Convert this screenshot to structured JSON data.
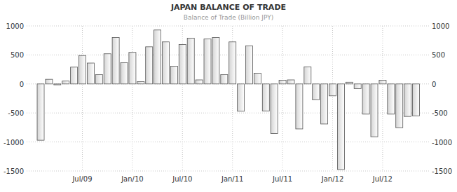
{
  "chart_data": {
    "type": "bar",
    "title": "JAPAN BALANCE OF TRADE",
    "subtitle": "Balance of Trade (Billion JPY)",
    "categories": [
      null,
      null,
      null,
      null,
      null,
      "Jul/09",
      null,
      null,
      null,
      null,
      null,
      "Jan/10",
      null,
      null,
      null,
      null,
      null,
      "Jul/10",
      null,
      null,
      null,
      null,
      null,
      "Jan/11",
      null,
      null,
      null,
      null,
      null,
      "Jul/11",
      null,
      null,
      null,
      null,
      null,
      "Jan/12",
      null,
      null,
      null,
      null,
      null,
      "Jul/12",
      null,
      null,
      null,
      null
    ],
    "values": [
      -970,
      80,
      -15,
      50,
      290,
      490,
      360,
      160,
      520,
      800,
      365,
      545,
      40,
      640,
      930,
      725,
      305,
      680,
      790,
      70,
      775,
      800,
      160,
      725,
      -470,
      655,
      185,
      -465,
      -855,
      65,
      70,
      -775,
      295,
      -275,
      -690,
      -205,
      -1475,
      30,
      -80,
      -520,
      -910,
      65,
      -520,
      -755,
      -560,
      -550
    ],
    "color": "#d4d4d4",
    "ylim": [
      -1500,
      1000
    ],
    "yticks": [
      -1500,
      -1000,
      -500,
      0,
      500,
      1000
    ],
    "grid": true
  }
}
